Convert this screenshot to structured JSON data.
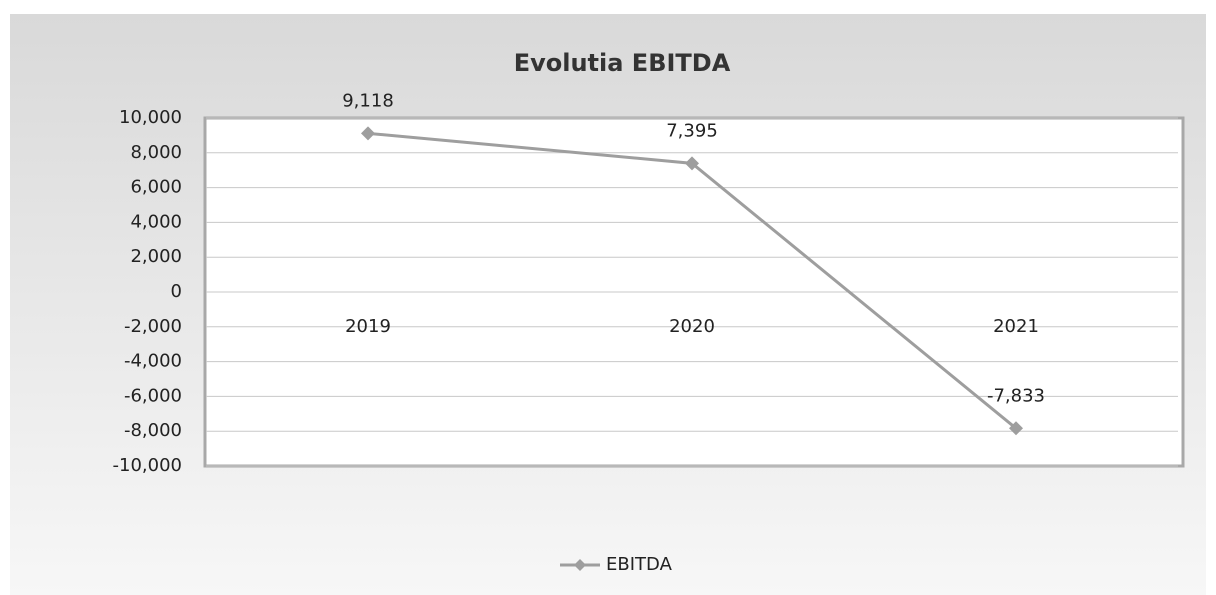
{
  "chart_data": {
    "type": "line",
    "title": "Evolutia EBITDA",
    "categories": [
      "2019",
      "2020",
      "2021"
    ],
    "series": [
      {
        "name": "EBITDA",
        "color": "#9e9e9e",
        "values": [
          9118,
          7395,
          -7833
        ],
        "value_labels": [
          "9,118",
          "7,395",
          "-7,833"
        ]
      }
    ],
    "ylim": [
      -10000,
      10000
    ],
    "yticks": [
      {
        "value": -10000,
        "label": "-10,000"
      },
      {
        "value": -8000,
        "label": "-8,000"
      },
      {
        "value": -6000,
        "label": "-6,000"
      },
      {
        "value": -4000,
        "label": "-4,000"
      },
      {
        "value": -2000,
        "label": "-2,000"
      },
      0,
      {
        "value": 2000,
        "label": "2,000"
      },
      {
        "value": 4000,
        "label": "4,000"
      },
      {
        "value": 6000,
        "label": "6,000"
      },
      {
        "value": 8000,
        "label": "8,000"
      },
      {
        "value": 10000,
        "label": "10,000"
      }
    ],
    "grid": true,
    "legend": "bottom"
  }
}
